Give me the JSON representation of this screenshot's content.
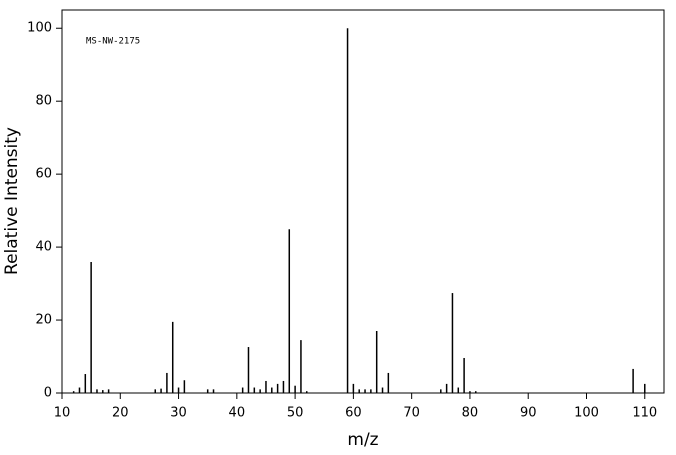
{
  "chart_data": {
    "type": "stem",
    "annotation": "MS-NW-2175",
    "xlabel": "m/z",
    "ylabel": "Relative Intensity",
    "x": [
      12,
      13,
      14,
      15,
      16,
      17,
      18,
      26,
      27,
      28,
      29,
      30,
      31,
      35,
      36,
      41,
      42,
      43,
      44,
      45,
      46,
      47,
      48,
      49,
      50,
      51,
      52,
      59,
      60,
      61,
      62,
      63,
      64,
      65,
      66,
      75,
      76,
      77,
      78,
      79,
      80,
      81,
      108,
      110
    ],
    "values": [
      0.5,
      1.5,
      5.2,
      35.9,
      1,
      0.8,
      1,
      1,
      1.2,
      5.5,
      19.5,
      1.5,
      3.5,
      1,
      1,
      1.5,
      12.6,
      1.5,
      1,
      3.3,
      1.5,
      2.5,
      3.3,
      44.9,
      2,
      14.5,
      0.5,
      100,
      2.5,
      1,
      1,
      1,
      17,
      1.5,
      5.5,
      1,
      2.5,
      27.4,
      1.5,
      9.6,
      0.5,
      0.5,
      6.6,
      2.5
    ],
    "color": "#000000",
    "xlim": [
      10,
      113.3
    ],
    "xticks": [
      10,
      20,
      30,
      40,
      50,
      60,
      70,
      80,
      90,
      100,
      110
    ],
    "ylim": [
      0,
      105
    ],
    "yticks": [
      0,
      20,
      40,
      60,
      80,
      100
    ]
  }
}
